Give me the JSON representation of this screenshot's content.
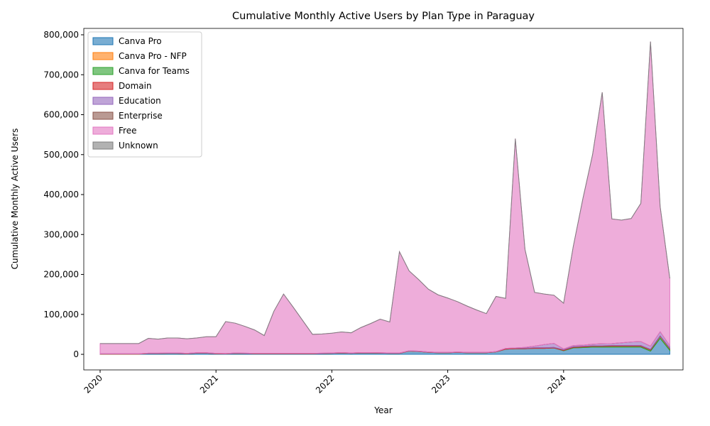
{
  "chart_data": {
    "type": "stacked-area",
    "title": "Cumulative Monthly Active Users by Plan Type in Paraguay",
    "x_label": "Year",
    "y_label": "Cumulative Monthly Active Users",
    "x": [
      "2020-01",
      "2020-02",
      "2020-03",
      "2020-04",
      "2020-05",
      "2020-06",
      "2020-07",
      "2020-08",
      "2020-09",
      "2020-10",
      "2020-11",
      "2020-12",
      "2021-01",
      "2021-02",
      "2021-03",
      "2021-04",
      "2021-05",
      "2021-06",
      "2021-07",
      "2021-08",
      "2021-09",
      "2021-10",
      "2021-11",
      "2021-12",
      "2022-01",
      "2022-02",
      "2022-03",
      "2022-04",
      "2022-05",
      "2022-06",
      "2022-07",
      "2022-08",
      "2022-09",
      "2022-10",
      "2022-11",
      "2022-12",
      "2023-01",
      "2023-02",
      "2023-03",
      "2023-04",
      "2023-05",
      "2023-06",
      "2023-07",
      "2023-08",
      "2023-09",
      "2023-10",
      "2023-11",
      "2023-12",
      "2024-01",
      "2024-02",
      "2024-03",
      "2024-04",
      "2024-05",
      "2024-06",
      "2024-07",
      "2024-08",
      "2024-09",
      "2024-10",
      "2024-11",
      "2024-12"
    ],
    "series": [
      {
        "name": "Canva Pro",
        "color": "#1f77b4",
        "values": [
          500,
          500,
          500,
          500,
          500,
          2000,
          2000,
          2500,
          2500,
          1500,
          3000,
          3000,
          1500,
          1000,
          2500,
          2000,
          1500,
          1500,
          1500,
          1500,
          1500,
          1500,
          1500,
          2000,
          2500,
          3500,
          2500,
          3500,
          3500,
          3000,
          2500,
          2500,
          8000,
          7000,
          5000,
          4000,
          4000,
          5000,
          4000,
          4000,
          4000,
          6000,
          13000,
          14000,
          14000,
          15000,
          15000,
          16000,
          9000,
          16000,
          17000,
          18000,
          18000,
          18000,
          18000,
          18000,
          18000,
          8000,
          40000,
          10000
        ]
      },
      {
        "name": "Canva Pro - NFP",
        "color": "#ff7f0e",
        "values": [
          0,
          0,
          0,
          0,
          0,
          0,
          0,
          0,
          0,
          0,
          0,
          0,
          0,
          0,
          0,
          0,
          0,
          0,
          0,
          0,
          0,
          0,
          0,
          0,
          0,
          0,
          0,
          0,
          0,
          0,
          0,
          0,
          0,
          0,
          0,
          0,
          0,
          0,
          0,
          0,
          0,
          0,
          0,
          0,
          0,
          0,
          0,
          0,
          0,
          0,
          0,
          0,
          0,
          0,
          0,
          0,
          0,
          0,
          0,
          0
        ]
      },
      {
        "name": "Canva for Teams",
        "color": "#2ca02c",
        "values": [
          0,
          0,
          0,
          0,
          0,
          0,
          0,
          0,
          0,
          0,
          0,
          0,
          0,
          0,
          0,
          0,
          0,
          0,
          0,
          0,
          0,
          0,
          0,
          0,
          0,
          0,
          0,
          0,
          0,
          0,
          0,
          0,
          0,
          0,
          0,
          0,
          0,
          0,
          0,
          0,
          0,
          0,
          0,
          0,
          0,
          0,
          0,
          0,
          1000,
          1500,
          1500,
          2000,
          2000,
          2500,
          2500,
          2500,
          2500,
          3000,
          5000,
          4000
        ]
      },
      {
        "name": "Domain",
        "color": "#d62728",
        "values": [
          500,
          500,
          500,
          500,
          500,
          500,
          500,
          500,
          500,
          500,
          500,
          500,
          500,
          500,
          500,
          500,
          500,
          500,
          500,
          500,
          500,
          500,
          500,
          500,
          500,
          500,
          500,
          500,
          500,
          500,
          500,
          500,
          500,
          500,
          500,
          500,
          500,
          500,
          500,
          500,
          500,
          500,
          1500,
          1500,
          1500,
          1500,
          1500,
          1500,
          1500,
          1500,
          1500,
          1500,
          1500,
          1500,
          1500,
          1500,
          1500,
          1500,
          1500,
          1500
        ]
      },
      {
        "name": "Education",
        "color": "#9467bd",
        "values": [
          500,
          500,
          500,
          500,
          500,
          500,
          500,
          500,
          500,
          500,
          500,
          500,
          500,
          500,
          500,
          500,
          500,
          500,
          500,
          500,
          500,
          500,
          500,
          500,
          500,
          500,
          500,
          500,
          500,
          500,
          500,
          500,
          500,
          500,
          500,
          500,
          500,
          500,
          500,
          500,
          500,
          500,
          500,
          500,
          2000,
          4000,
          8000,
          10000,
          2000,
          3000,
          3000,
          4000,
          5000,
          5000,
          7000,
          9000,
          10000,
          8000,
          10000,
          6000
        ]
      },
      {
        "name": "Enterprise",
        "color": "#8c564b",
        "values": [
          0,
          0,
          0,
          0,
          0,
          0,
          0,
          0,
          0,
          0,
          0,
          0,
          0,
          0,
          0,
          0,
          0,
          0,
          0,
          0,
          0,
          0,
          0,
          0,
          0,
          0,
          0,
          0,
          0,
          0,
          0,
          0,
          0,
          0,
          0,
          0,
          0,
          0,
          0,
          0,
          0,
          0,
          0,
          0,
          0,
          0,
          0,
          0,
          0,
          0,
          0,
          0,
          0,
          0,
          0,
          0,
          0,
          0,
          0,
          0
        ]
      },
      {
        "name": "Free",
        "color": "#e377c2",
        "values": [
          25500,
          25500,
          25500,
          25500,
          25500,
          37000,
          35000,
          37500,
          37500,
          36500,
          37000,
          40000,
          41500,
          80000,
          74500,
          67000,
          58500,
          44500,
          105500,
          148500,
          115500,
          81500,
          47500,
          48000,
          49500,
          51500,
          50500,
          62500,
          72500,
          84000,
          77500,
          253500,
          200000,
          179000,
          157000,
          144000,
          136000,
          126000,
          116000,
          106000,
          97000,
          138000,
          125000,
          524000,
          245500,
          134500,
          126500,
          120500,
          114500,
          248000,
          367000,
          474500,
          629500,
          312000,
          307000,
          309000,
          346000,
          762500,
          313500,
          168500
        ]
      },
      {
        "name": "Unknown",
        "color": "#7f7f7f",
        "values": [
          0,
          0,
          0,
          0,
          0,
          0,
          0,
          0,
          0,
          0,
          0,
          0,
          0,
          0,
          0,
          0,
          0,
          0,
          0,
          0,
          0,
          0,
          0,
          0,
          0,
          0,
          0,
          0,
          0,
          0,
          0,
          0,
          0,
          0,
          0,
          0,
          0,
          0,
          0,
          0,
          0,
          0,
          0,
          0,
          0,
          0,
          0,
          0,
          0,
          0,
          0,
          0,
          0,
          0,
          0,
          0,
          0,
          0,
          0,
          0
        ]
      }
    ],
    "xticks": [
      {
        "value": "2020-01",
        "label": "2020"
      },
      {
        "value": "2021-01",
        "label": "2021"
      },
      {
        "value": "2022-01",
        "label": "2022"
      },
      {
        "value": "2023-01",
        "label": "2023"
      },
      {
        "value": "2024-01",
        "label": "2024"
      }
    ],
    "ylim": [
      -39000,
      816000
    ],
    "yticks": [
      0,
      {
        "value": 100000,
        "label": "100,000"
      },
      {
        "value": 200000,
        "label": "200,000"
      },
      {
        "value": 300000,
        "label": "300,000"
      },
      {
        "value": 400000,
        "label": "400,000"
      },
      {
        "value": 500000,
        "label": "500,000"
      },
      {
        "value": 600000,
        "label": "600,000"
      },
      {
        "value": 700000,
        "label": "700,000"
      },
      {
        "value": 800000,
        "label": "800,000"
      }
    ],
    "legend": "upper left",
    "opacity": 0.6
  }
}
